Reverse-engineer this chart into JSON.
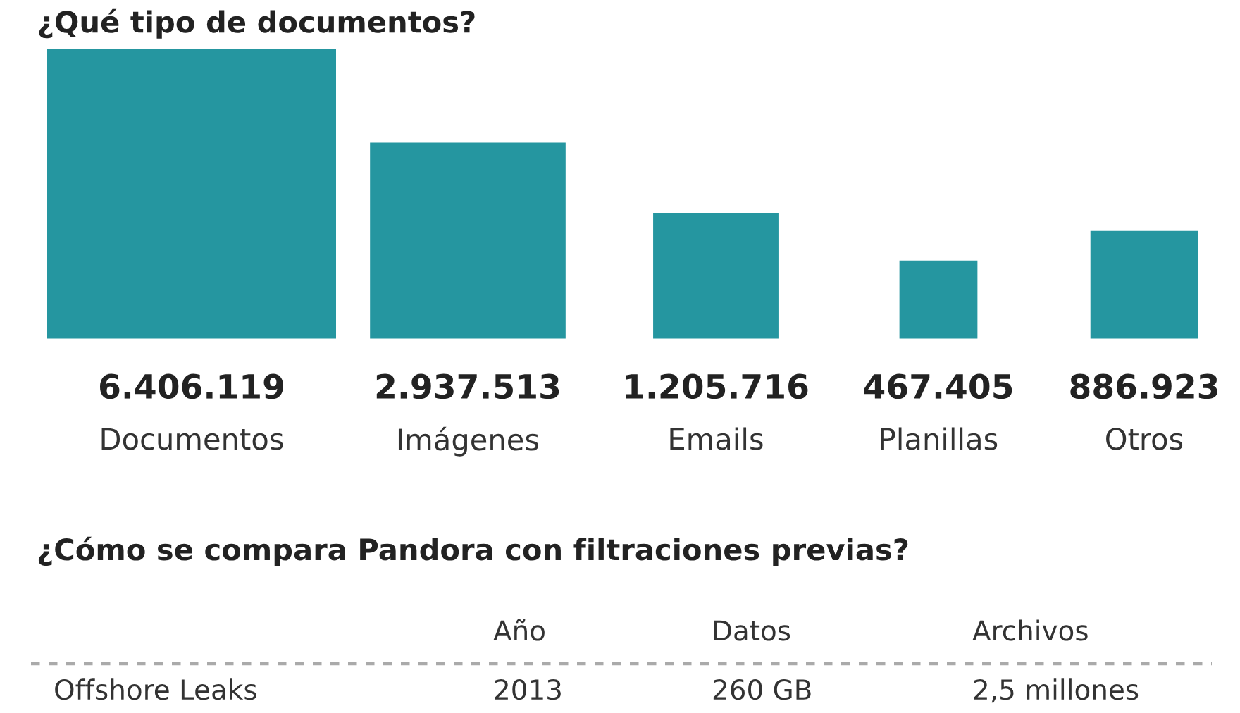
{
  "chart_data": [
    {
      "type": "other",
      "title": "¿Qué tipo de documentos?",
      "categories": [
        "Documentos",
        "Imágenes",
        "Emails",
        "Planillas",
        "Otros"
      ],
      "values": [
        6406119,
        2937513,
        1205716,
        467405,
        886923
      ],
      "value_labels": [
        "6.406.119",
        "2.937.513",
        "1.205.716",
        "467.405",
        "886.923"
      ],
      "color": "#2596a0"
    },
    {
      "type": "other",
      "title": "¿Cómo se compara Pandora con filtraciones previas?",
      "annotations": [
        "Año",
        "Datos",
        "Archivos",
        "Offshore Leaks",
        "2013",
        "260 GB",
        "2,5 millones"
      ]
    }
  ]
}
